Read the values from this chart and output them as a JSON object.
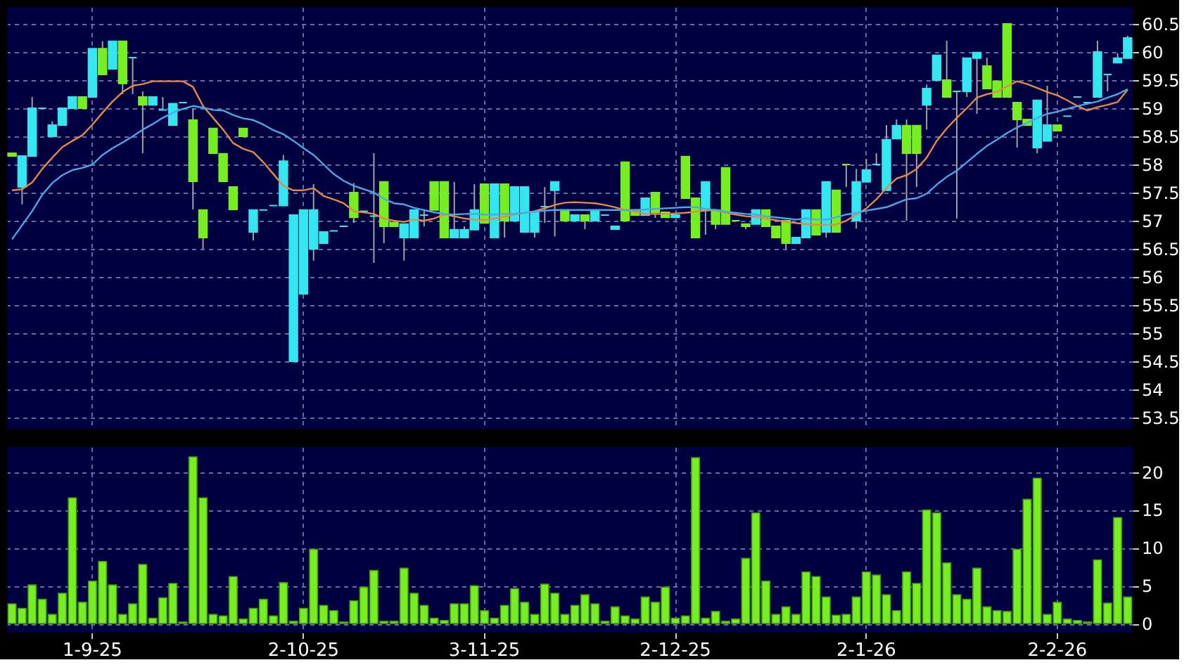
{
  "chart_data": [
    {
      "type": "candlestick",
      "tick_labels": "y",
      "grid": true,
      "ylim": [
        53.3,
        60.8
      ],
      "yticks": [
        53.5,
        54,
        54.5,
        55,
        55.5,
        56,
        56.5,
        57,
        57.5,
        58,
        58.5,
        59,
        59.5,
        60,
        60.5
      ],
      "categories": [
        null,
        null,
        null,
        null,
        null,
        null,
        null,
        null,
        null,
        null,
        null,
        null,
        null,
        null,
        null,
        null,
        null,
        null,
        null,
        null,
        null,
        null,
        null,
        null,
        null,
        null,
        null,
        null,
        null,
        null,
        null,
        null,
        null,
        null,
        null,
        null,
        null,
        null,
        null,
        null,
        null,
        null,
        null,
        null,
        null,
        null,
        null,
        null,
        null,
        null,
        null,
        null,
        null,
        null,
        null,
        null,
        null,
        null,
        null,
        null,
        null,
        null,
        null,
        null,
        null,
        null,
        null,
        null,
        null,
        null,
        null,
        null,
        null,
        null,
        null,
        null,
        null,
        null,
        null,
        null,
        null,
        null,
        null,
        null,
        null,
        null,
        null,
        null,
        null,
        null,
        null,
        null,
        null,
        null,
        null,
        null,
        null,
        null,
        null,
        null,
        null,
        null,
        null,
        null,
        null,
        null,
        null,
        null,
        null,
        null,
        null,
        null
      ],
      "ohlc": [
        [
          58.2,
          58.2,
          58.15,
          58.15
        ],
        [
          57.6,
          58.15,
          57.29,
          58.15
        ],
        [
          58.15,
          59.2,
          58.15,
          59.0
        ],
        [
          59.0,
          59.0,
          59.0,
          59.0
        ],
        [
          58.5,
          58.77,
          58.5,
          58.7
        ],
        [
          58.7,
          59.0,
          58.7,
          59.0
        ],
        [
          59.0,
          59.2,
          59.0,
          59.2
        ],
        [
          59.2,
          59.2,
          59.0,
          59.0
        ],
        [
          59.2,
          60.06,
          59.2,
          60.06
        ],
        [
          60.06,
          60.19,
          59.6,
          59.6
        ],
        [
          59.7,
          60.2,
          59.7,
          60.19
        ],
        [
          60.19,
          60.19,
          59.25,
          59.44
        ],
        [
          59.9,
          59.9,
          59.25,
          59.9
        ],
        [
          59.2,
          59.3,
          58.2,
          59.06
        ],
        [
          59.06,
          59.2,
          59.06,
          59.2
        ],
        [
          58.97,
          59.2,
          58.97,
          58.97
        ],
        [
          58.7,
          59.08,
          58.7,
          59.08
        ],
        [
          59.1,
          59.1,
          59.1,
          59.1
        ],
        [
          58.79,
          59.0,
          57.2,
          57.7
        ],
        [
          57.19,
          57.19,
          56.5,
          56.7
        ],
        [
          58.64,
          58.64,
          58.2,
          58.2
        ],
        [
          58.19,
          58.19,
          57.7,
          57.7
        ],
        [
          57.6,
          57.6,
          57.2,
          57.2
        ],
        [
          58.64,
          58.64,
          58.5,
          58.5
        ],
        [
          56.8,
          57.19,
          56.65,
          57.19
        ],
        [
          57.19,
          57.19,
          57.19,
          57.19
        ],
        [
          57.27,
          57.27,
          57.27,
          57.27
        ],
        [
          57.27,
          58.17,
          57.27,
          58.06
        ],
        [
          54.5,
          57.1,
          54.5,
          57.1
        ],
        [
          55.7,
          57.19,
          55.7,
          57.19
        ],
        [
          56.5,
          57.65,
          56.29,
          57.19
        ],
        [
          56.6,
          56.8,
          56.6,
          56.8
        ],
        [
          56.82,
          56.82,
          56.82,
          56.82
        ],
        [
          56.9,
          56.9,
          56.9,
          56.9
        ],
        [
          57.5,
          57.67,
          56.96,
          57.06
        ],
        [
          57.17,
          57.17,
          57.17,
          57.17
        ],
        [
          57.08,
          58.2,
          56.25,
          57.08
        ],
        [
          57.69,
          57.69,
          56.6,
          56.9
        ],
        [
          56.97,
          56.97,
          56.9,
          56.9
        ],
        [
          56.7,
          56.94,
          56.29,
          56.94
        ],
        [
          56.7,
          57.19,
          56.7,
          57.19
        ],
        [
          57.1,
          57.19,
          56.9,
          57.1
        ],
        [
          57.69,
          57.69,
          57.19,
          57.19
        ],
        [
          57.69,
          57.69,
          56.7,
          56.7
        ],
        [
          56.7,
          57.69,
          56.7,
          56.84
        ],
        [
          56.7,
          56.9,
          56.7,
          56.84
        ],
        [
          56.84,
          57.65,
          56.84,
          57.19
        ],
        [
          57.65,
          57.65,
          56.96,
          56.96
        ],
        [
          56.7,
          57.65,
          56.7,
          57.65
        ],
        [
          57.65,
          57.65,
          56.7,
          57.0
        ],
        [
          57.0,
          57.6,
          57.0,
          57.6
        ],
        [
          56.8,
          57.6,
          56.8,
          57.6
        ],
        [
          56.8,
          57.15,
          56.7,
          57.15
        ],
        [
          57.25,
          57.6,
          56.96,
          57.25
        ],
        [
          57.54,
          57.69,
          56.72,
          57.69
        ],
        [
          57.19,
          57.19,
          57.0,
          57.0
        ],
        [
          57.0,
          57.1,
          57.0,
          57.1
        ],
        [
          57.1,
          57.1,
          56.85,
          57.0
        ],
        [
          57.0,
          57.19,
          57.0,
          57.19
        ],
        [
          57.1,
          57.1,
          57.1,
          57.1
        ],
        [
          56.85,
          56.9,
          56.85,
          56.9
        ],
        [
          58.04,
          58.04,
          57.0,
          57.0
        ],
        [
          57.19,
          57.19,
          57.1,
          57.1
        ],
        [
          57.1,
          57.4,
          57.1,
          57.4
        ],
        [
          57.5,
          57.5,
          57.05,
          57.15
        ],
        [
          57.15,
          57.15,
          57.06,
          57.06
        ],
        [
          57.06,
          57.1,
          57.06,
          57.1
        ],
        [
          58.14,
          58.14,
          57.4,
          57.4
        ],
        [
          57.4,
          57.4,
          56.7,
          56.7
        ],
        [
          57.19,
          57.69,
          56.75,
          57.69
        ],
        [
          57.19,
          57.19,
          56.85,
          56.94
        ],
        [
          57.94,
          57.94,
          56.94,
          56.94
        ],
        [
          57.0,
          57.0,
          57.0,
          57.0
        ],
        [
          56.94,
          56.94,
          56.85,
          56.9
        ],
        [
          56.94,
          57.19,
          56.94,
          57.19
        ],
        [
          57.19,
          57.19,
          56.9,
          56.9
        ],
        [
          56.9,
          56.9,
          56.7,
          56.7
        ],
        [
          57.0,
          57.0,
          56.5,
          56.6
        ],
        [
          56.6,
          56.7,
          56.6,
          56.7
        ],
        [
          56.7,
          57.19,
          56.7,
          57.19
        ],
        [
          57.19,
          57.19,
          56.75,
          56.75
        ],
        [
          56.8,
          57.69,
          56.7,
          57.69
        ],
        [
          57.54,
          57.54,
          56.8,
          56.8
        ],
        [
          58.0,
          58.0,
          57.6,
          58.0
        ],
        [
          57.0,
          57.92,
          56.86,
          57.69
        ],
        [
          57.69,
          58.1,
          57.69,
          57.9
        ],
        [
          58.0,
          58.2,
          58.0,
          58.0
        ],
        [
          57.54,
          58.7,
          57.54,
          58.44
        ],
        [
          58.46,
          58.8,
          58.46,
          58.69
        ],
        [
          58.69,
          58.8,
          57.0,
          58.2
        ],
        [
          58.69,
          58.69,
          57.6,
          58.2
        ],
        [
          59.06,
          59.42,
          58.62,
          59.35
        ],
        [
          59.5,
          59.94,
          59.5,
          59.94
        ],
        [
          59.5,
          60.2,
          59.2,
          59.2
        ],
        [
          59.3,
          59.3,
          57.04,
          59.3
        ],
        [
          59.3,
          59.89,
          59.2,
          59.89
        ],
        [
          59.89,
          59.99,
          58.9,
          59.99
        ],
        [
          59.75,
          59.9,
          59.35,
          59.35
        ],
        [
          59.48,
          59.48,
          59.2,
          59.2
        ],
        [
          60.5,
          60.5,
          59.2,
          59.2
        ],
        [
          59.1,
          59.1,
          58.3,
          58.8
        ],
        [
          58.8,
          58.8,
          58.7,
          58.7
        ],
        [
          58.3,
          59.14,
          58.2,
          59.14
        ],
        [
          58.42,
          59.4,
          58.42,
          58.7
        ],
        [
          58.7,
          58.7,
          58.6,
          58.6
        ],
        [
          58.86,
          58.86,
          58.86,
          58.86
        ],
        [
          59.2,
          59.2,
          59.2,
          59.2
        ],
        [
          59.1,
          59.1,
          59.1,
          59.1
        ],
        [
          59.2,
          60.2,
          59.2,
          60.0
        ],
        [
          59.6,
          59.6,
          59.3,
          59.6
        ],
        [
          59.81,
          59.98,
          59.81,
          59.89
        ],
        [
          59.89,
          60.29,
          59.89,
          60.25
        ]
      ],
      "colors": [
        "#77ee22",
        "#33e6f0",
        "#33e6f0",
        "#33e6f0",
        "#33e6f0",
        "#33e6f0",
        "#33e6f0",
        "#77ee22",
        "#33e6f0",
        "#77ee22",
        "#33e6f0",
        "#77ee22",
        "#33e6f0",
        "#77ee22",
        "#33e6f0",
        "#33e6f0",
        "#33e6f0",
        "#33e6f0",
        "#77ee22",
        "#77ee22",
        "#77ee22",
        "#77ee22",
        "#77ee22",
        "#77ee22",
        "#33e6f0",
        "#33e6f0",
        "#33e6f0",
        "#33e6f0",
        "#33e6f0",
        "#33e6f0",
        "#33e6f0",
        "#33e6f0",
        "#33e6f0",
        "#33e6f0",
        "#77ee22",
        "#33e6f0",
        "#33e6f0",
        "#77ee22",
        "#77ee22",
        "#33e6f0",
        "#33e6f0",
        "#33e6f0",
        "#77ee22",
        "#77ee22",
        "#33e6f0",
        "#33e6f0",
        "#33e6f0",
        "#77ee22",
        "#33e6f0",
        "#77ee22",
        "#33e6f0",
        "#33e6f0",
        "#33e6f0",
        "#33e6f0",
        "#33e6f0",
        "#77ee22",
        "#33e6f0",
        "#77ee22",
        "#33e6f0",
        "#33e6f0",
        "#33e6f0",
        "#77ee22",
        "#77ee22",
        "#33e6f0",
        "#77ee22",
        "#77ee22",
        "#33e6f0",
        "#77ee22",
        "#77ee22",
        "#33e6f0",
        "#77ee22",
        "#77ee22",
        "#77ee22",
        "#77ee22",
        "#33e6f0",
        "#77ee22",
        "#77ee22",
        "#77ee22",
        "#33e6f0",
        "#33e6f0",
        "#77ee22",
        "#33e6f0",
        "#77ee22",
        "#77ee22",
        "#33e6f0",
        "#33e6f0",
        "#33e6f0",
        "#33e6f0",
        "#33e6f0",
        "#77ee22",
        "#77ee22",
        "#33e6f0",
        "#33e6f0",
        "#77ee22",
        "#33e6f0",
        "#33e6f0",
        "#33e6f0",
        "#77ee22",
        "#77ee22",
        "#77ee22",
        "#77ee22",
        "#77ee22",
        "#33e6f0",
        "#33e6f0",
        "#77ee22",
        "#33e6f0",
        "#33e6f0",
        "#33e6f0",
        "#33e6f0",
        "#33e6f0",
        "#33e6f0",
        "#33e6f0"
      ],
      "series": [
        {
          "type": "line",
          "color": "#e8874a",
          "values": [
            57.54,
            57.56,
            57.68,
            57.92,
            58.12,
            58.31,
            58.42,
            58.52,
            58.71,
            58.92,
            59.12,
            59.29,
            59.4,
            59.43,
            59.48,
            59.48,
            59.48,
            59.48,
            59.38,
            59.04,
            58.83,
            58.62,
            58.38,
            58.28,
            58.22,
            58.04,
            57.83,
            57.62,
            57.54,
            57.54,
            57.58,
            57.44,
            57.38,
            57.31,
            57.17,
            57.15,
            57.12,
            57.04,
            57.0,
            56.98,
            57.02,
            57.0,
            57.04,
            57.11,
            57.08,
            57.04,
            57.02,
            57.01,
            57.04,
            57.07,
            57.11,
            57.14,
            57.17,
            57.22,
            57.28,
            57.32,
            57.33,
            57.32,
            57.31,
            57.28,
            57.24,
            57.19,
            57.16,
            57.12,
            57.12,
            57.12,
            57.13,
            57.14,
            57.16,
            57.18,
            57.19,
            57.14,
            57.11,
            57.08,
            57.07,
            57.04,
            57.01,
            56.98,
            56.96,
            56.94,
            56.93,
            56.93,
            56.93,
            57.0,
            57.11,
            57.22,
            57.38,
            57.58,
            57.75,
            57.81,
            57.92,
            58.12,
            58.42,
            58.64,
            58.83,
            59.0,
            59.19,
            59.25,
            59.29,
            59.39,
            59.48,
            59.43,
            59.36,
            59.29,
            59.23,
            59.14,
            59.04,
            58.96,
            59.02,
            59.06,
            59.11,
            59.33
          ]
        },
        {
          "type": "line",
          "color": "#4aa8e8",
          "values": [
            56.67,
            56.92,
            57.17,
            57.46,
            57.67,
            57.81,
            57.9,
            57.94,
            58.0,
            58.17,
            58.29,
            58.39,
            58.5,
            58.62,
            58.72,
            58.83,
            58.92,
            58.99,
            59.04,
            59.01,
            58.97,
            58.96,
            58.88,
            58.82,
            58.79,
            58.71,
            58.61,
            58.54,
            58.42,
            58.29,
            58.17,
            58.0,
            57.83,
            57.71,
            57.62,
            57.56,
            57.5,
            57.39,
            57.31,
            57.29,
            57.23,
            57.19,
            57.15,
            57.12,
            57.11,
            57.12,
            57.12,
            57.11,
            57.11,
            57.12,
            57.12,
            57.14,
            57.16,
            57.18,
            57.19,
            57.19,
            57.19,
            57.19,
            57.19,
            57.19,
            57.19,
            57.19,
            57.19,
            57.2,
            57.21,
            57.22,
            57.23,
            57.24,
            57.24,
            57.21,
            57.19,
            57.16,
            57.14,
            57.12,
            57.11,
            57.08,
            57.06,
            57.04,
            57.02,
            57.04,
            57.02,
            57.02,
            57.06,
            57.11,
            57.14,
            57.18,
            57.21,
            57.24,
            57.31,
            57.38,
            57.4,
            57.48,
            57.64,
            57.78,
            57.89,
            58.04,
            58.19,
            58.33,
            58.44,
            58.56,
            58.66,
            58.74,
            58.83,
            58.9,
            58.94,
            58.99,
            59.04,
            59.08,
            59.12,
            59.19,
            59.25,
            59.34
          ]
        }
      ]
    },
    {
      "type": "bar",
      "grid": true,
      "color": "#77ee22",
      "ylim": [
        -1.2,
        23.3
      ],
      "yticks": [
        0,
        5,
        10,
        15,
        20
      ],
      "categories": [
        null,
        null,
        null,
        null,
        null,
        null,
        null,
        null,
        "1-9-25",
        null,
        null,
        null,
        null,
        null,
        null,
        null,
        null,
        null,
        null,
        null,
        null,
        null,
        null,
        null,
        null,
        null,
        null,
        null,
        null,
        "2-10-25",
        null,
        null,
        null,
        null,
        null,
        null,
        null,
        null,
        null,
        null,
        null,
        null,
        null,
        null,
        null,
        null,
        null,
        "3-11-25",
        null,
        null,
        null,
        null,
        null,
        null,
        null,
        null,
        null,
        null,
        null,
        null,
        null,
        null,
        null,
        null,
        null,
        null,
        "2-12-25",
        null,
        null,
        null,
        null,
        null,
        null,
        null,
        null,
        null,
        null,
        null,
        null,
        null,
        null,
        null,
        null,
        null,
        null,
        "2-1-26",
        null,
        null,
        null,
        null,
        null,
        null,
        null,
        null,
        null,
        null,
        null,
        null,
        null,
        null,
        null,
        null,
        null,
        null,
        "2-2-26",
        null,
        null,
        null,
        null,
        null,
        null,
        null
      ],
      "values": [
        2.6,
        2.0,
        5.1,
        3.2,
        1.2,
        4.0,
        16.6,
        2.8,
        5.6,
        8.2,
        5.1,
        1.2,
        2.6,
        7.8,
        0.7,
        3.4,
        5.3,
        0.2,
        22.0,
        16.6,
        1.2,
        1.0,
        6.2,
        0.6,
        2.0,
        3.2,
        1.0,
        5.4,
        0.3,
        2.0,
        9.8,
        2.4,
        1.7,
        0.2,
        3.0,
        4.8,
        7.0,
        0.3,
        0.3,
        7.3,
        4.0,
        2.4,
        0.7,
        0.4,
        2.6,
        2.6,
        5.0,
        1.7,
        0.7,
        2.4,
        4.6,
        2.8,
        1.2,
        5.2,
        4.0,
        1.2,
        2.4,
        3.8,
        2.6,
        0.3,
        2.2,
        1.0,
        0.6,
        3.5,
        2.8,
        4.8,
        0.7,
        1.0,
        21.9,
        0.7,
        1.6,
        0.3,
        0.6,
        8.6,
        14.6,
        5.6,
        1.2,
        2.2,
        1.2,
        6.8,
        6.2,
        3.5,
        1.1,
        1.2,
        3.5,
        6.8,
        6.4,
        3.8,
        1.7,
        6.8,
        5.3,
        15.0,
        14.6,
        8.0,
        3.8,
        3.2,
        7.3,
        2.2,
        1.7,
        1.6,
        9.8,
        16.4,
        19.2,
        1.2,
        2.8,
        0.6,
        0.4,
        0.2,
        8.4,
        2.7,
        14.0,
        3.5
      ]
    }
  ]
}
